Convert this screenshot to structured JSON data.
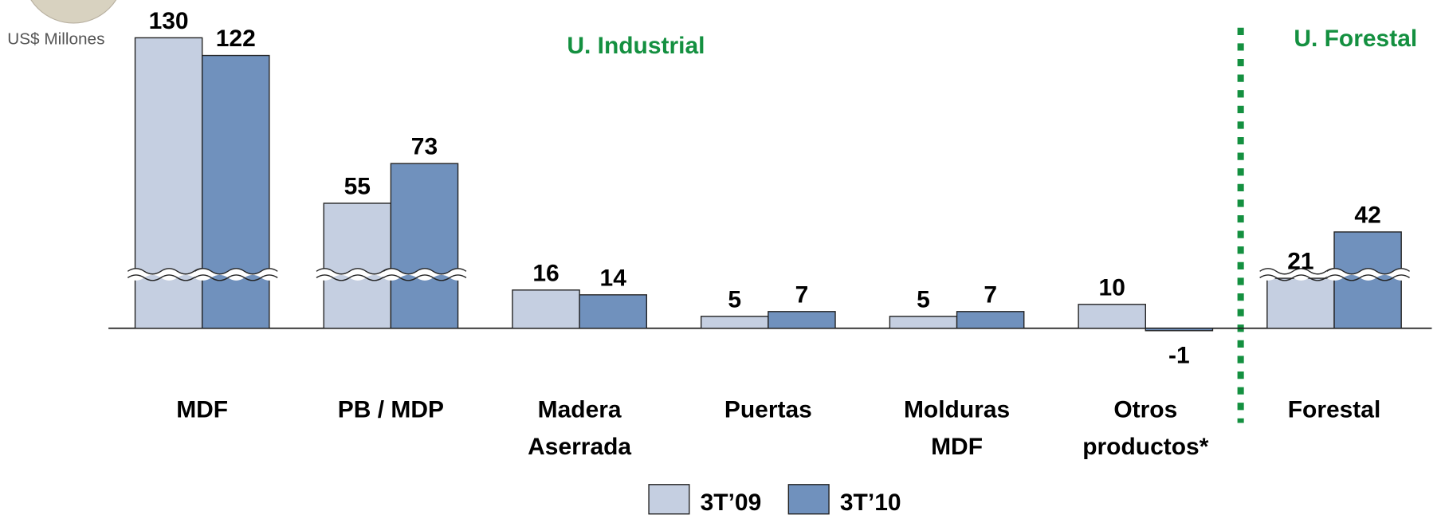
{
  "chart_data": {
    "type": "bar",
    "subtitle": "US$ Millones",
    "annotations": [
      "U. Industrial",
      "U. Forestal"
    ],
    "categories": [
      [
        "MDF"
      ],
      [
        "PB / MDP"
      ],
      [
        "Madera",
        "Aserrada"
      ],
      [
        "Puertas"
      ],
      [
        "Molduras",
        "MDF"
      ],
      [
        "Otros",
        "productos*"
      ],
      [
        "Forestal"
      ]
    ],
    "series": [
      {
        "name": "3T’09",
        "color": "#c5cfe1",
        "values": [
          130,
          55,
          16,
          5,
          5,
          10,
          21
        ]
      },
      {
        "name": "3T’10",
        "color": "#7091bd",
        "values": [
          122,
          73,
          14,
          7,
          7,
          -1,
          42
        ]
      }
    ]
  }
}
